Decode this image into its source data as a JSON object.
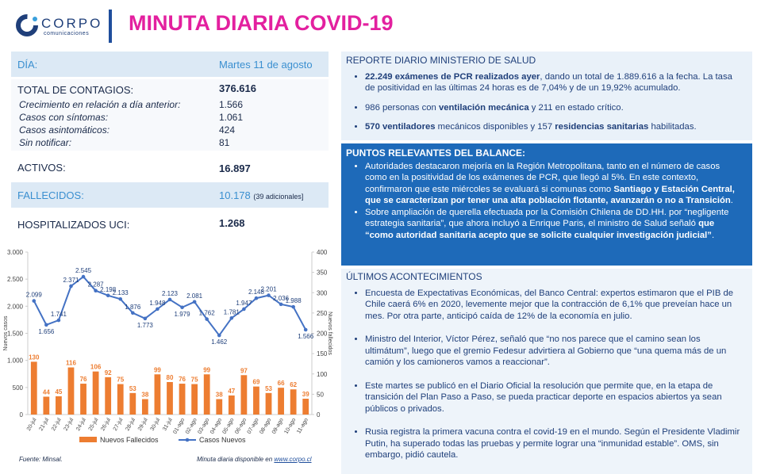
{
  "header": {
    "brand": "CORPO",
    "brand_sub": "comunicaciones",
    "title": "MINUTA DIARIA COVID-19"
  },
  "summary": {
    "day": {
      "label": "DÍA:",
      "value": "Martes 11 de agosto"
    },
    "total": {
      "label": "TOTAL DE CONTAGIOS:",
      "value": "376.616",
      "details": [
        {
          "label": "Crecimiento en relación a día anterior:",
          "value": "1.566"
        },
        {
          "label": "Casos con síntomas:",
          "value": "1.061"
        },
        {
          "label": "Casos asintomáticos:",
          "value": "424"
        },
        {
          "label": "Sin notificar:",
          "value": "81"
        }
      ]
    },
    "active": {
      "label": "ACTIVOS:",
      "value": "16.897"
    },
    "deaths": {
      "label": "FALLECIDOS:",
      "value": "10.178",
      "note": "(39 adicionales]"
    },
    "icu": {
      "label": "HOSPITALIZADOS UCI:",
      "value": "1.268"
    }
  },
  "sections": [
    {
      "title": "REPORTE DIARIO MINISTERIO DE SALUD",
      "items": [
        [
          {
            "text": "22.249 exámenes de PCR realizados ayer",
            "bold": true
          },
          {
            "text": ", dando un total de 1.889.616 a la fecha. La tasa de positividad en las últimas 24 horas es de 7,04% y de un 19,92% acumulado."
          }
        ],
        [
          {
            "text": "986 personas con "
          },
          {
            "text": "ventilación mecánica",
            "bold": true
          },
          {
            "text": " y 211 en estado crítico."
          }
        ],
        [
          {
            "text": "570 ventiladores",
            "bold": true
          },
          {
            "text": " mecánicos disponibles y 157 "
          },
          {
            "text": "residencias sanitarias",
            "bold": true
          },
          {
            "text": " habilitadas."
          }
        ]
      ]
    },
    {
      "title": "PUNTOS RELEVANTES DEL BALANCE:",
      "items": [
        [
          {
            "text": "Autoridades destacaron mejoría en la Región Metropolitana, tanto en el número de casos como en la positividad de los exámenes de PCR, que llegó al 5%. En este contexto, confirmaron que este miércoles se evaluará si comunas como "
          },
          {
            "text": "Santiago y Estación Central, que se caracterizan por tener una alta población flotante, avanzarán o no a Transición",
            "bold": true
          },
          {
            "text": "."
          }
        ],
        [
          {
            "text": "Sobre ampliación de querella efectuada por la Comisión Chilena de DD.HH. por “negligente estrategia sanitaria”, que ahora incluyó a Enrique Paris, el ministro de Salud señaló "
          },
          {
            "text": "que “como autoridad sanitaria acepto que se solicite cualquier investigación judicial”",
            "bold": true
          },
          {
            "text": "."
          }
        ]
      ]
    },
    {
      "title": "ÚLTIMOS ACONTECIMIENTOS",
      "items": [
        [
          {
            "text": "Encuesta de Expectativas Económicas, del Banco Central: expertos estimaron que el PIB de Chile caerá 6% en 2020, levemente mejor que la contracción de 6,1% que preveían hace un mes. Por otra parte, anticipó caída de 12% de la economía en julio."
          }
        ],
        [
          {
            "text": "Ministro del Interior, Víctor Pérez, señaló que “no nos parece que el camino sean los ultimátum”, luego que el gremio Fedesur advirtiera al Gobierno que “una quema más de un camión y los camioneros vamos a reaccionar”."
          }
        ],
        [
          {
            "text": "Este martes se publicó en el Diario Oficial la resolución que permite que, en la etapa de transición del Plan Paso a Paso, se pueda practicar deporte en espacios abiertos ya sean públicos o privados."
          }
        ],
        [
          {
            "text": "Rusia registra la primera vacuna contra el covid-19 en el mundo. Según el Presidente Vladimir Putin, ha superado todas las pruebas y permite lograr una “inmunidad estable”. OMS, sin embargo, pidió cautela."
          }
        ]
      ]
    }
  ],
  "chart_data": {
    "type": "combo",
    "categories": [
      "20-jul",
      "21-jul",
      "22-jul",
      "23-jul",
      "24-jul",
      "25-jul",
      "26-jul",
      "27-jul",
      "28-jul",
      "29-jul",
      "30-jul",
      "31-jul",
      "01-ago",
      "02-ago",
      "03-ago",
      "04-ago",
      "05-ago",
      "06-ago",
      "07-ago",
      "08-ago",
      "09-ago",
      "10-ago",
      "11-ago"
    ],
    "series": [
      {
        "name": "Nuevos Fallecidos",
        "type": "bar",
        "axis": "y2",
        "color": "#ed7d31",
        "values": [
          130,
          44,
          45,
          116,
          76,
          106,
          92,
          75,
          53,
          38,
          99,
          80,
          76,
          75,
          99,
          38,
          47,
          97,
          69,
          53,
          66,
          62,
          39
        ]
      },
      {
        "name": "Casos Nuevos",
        "type": "line",
        "axis": "y",
        "color": "#4472c4",
        "values": [
          2099,
          1656,
          1741,
          2371,
          2545,
          2287,
          2198,
          2133,
          1876,
          1773,
          1948,
          2123,
          1979,
          2081,
          1762,
          1462,
          1781,
          1947,
          2148,
          2201,
          2036,
          1988,
          1566
        ],
        "value_labels": [
          "2.099",
          "1.656",
          "1.741",
          "2.371",
          "2.545",
          "2.287",
          "2.198",
          "2.133",
          "1.876",
          "1.773",
          "1.948",
          "2.123",
          "1.979",
          "2.081",
          "1.762",
          "1.462",
          "1.781",
          "1.947",
          "2.148",
          "2.201",
          "2.036",
          "1.988",
          "1.566"
        ]
      }
    ],
    "ylabel": "Nuevos casos",
    "y2label": "Nuevos fallecidos",
    "ylim": [
      0,
      3000
    ],
    "yticks": [
      0,
      500,
      {
        "value": 1000,
        "label": "1.000"
      },
      {
        "value": 1500,
        "label": "1.500"
      },
      {
        "value": 2000,
        "label": "2.000"
      },
      {
        "value": 2500,
        "label": "2.500"
      },
      {
        "value": 3000,
        "label": "3.000"
      }
    ],
    "y2lim": [
      0,
      400
    ],
    "y2ticks": [
      0,
      50,
      100,
      150,
      200,
      250,
      300,
      350,
      400
    ],
    "grid": false,
    "legend": "bottom"
  },
  "footer": {
    "source": "Fuente: Minsal.",
    "availability": {
      "text": "Minuta diaria disponible en",
      "link": "www.corpo.cl"
    }
  }
}
